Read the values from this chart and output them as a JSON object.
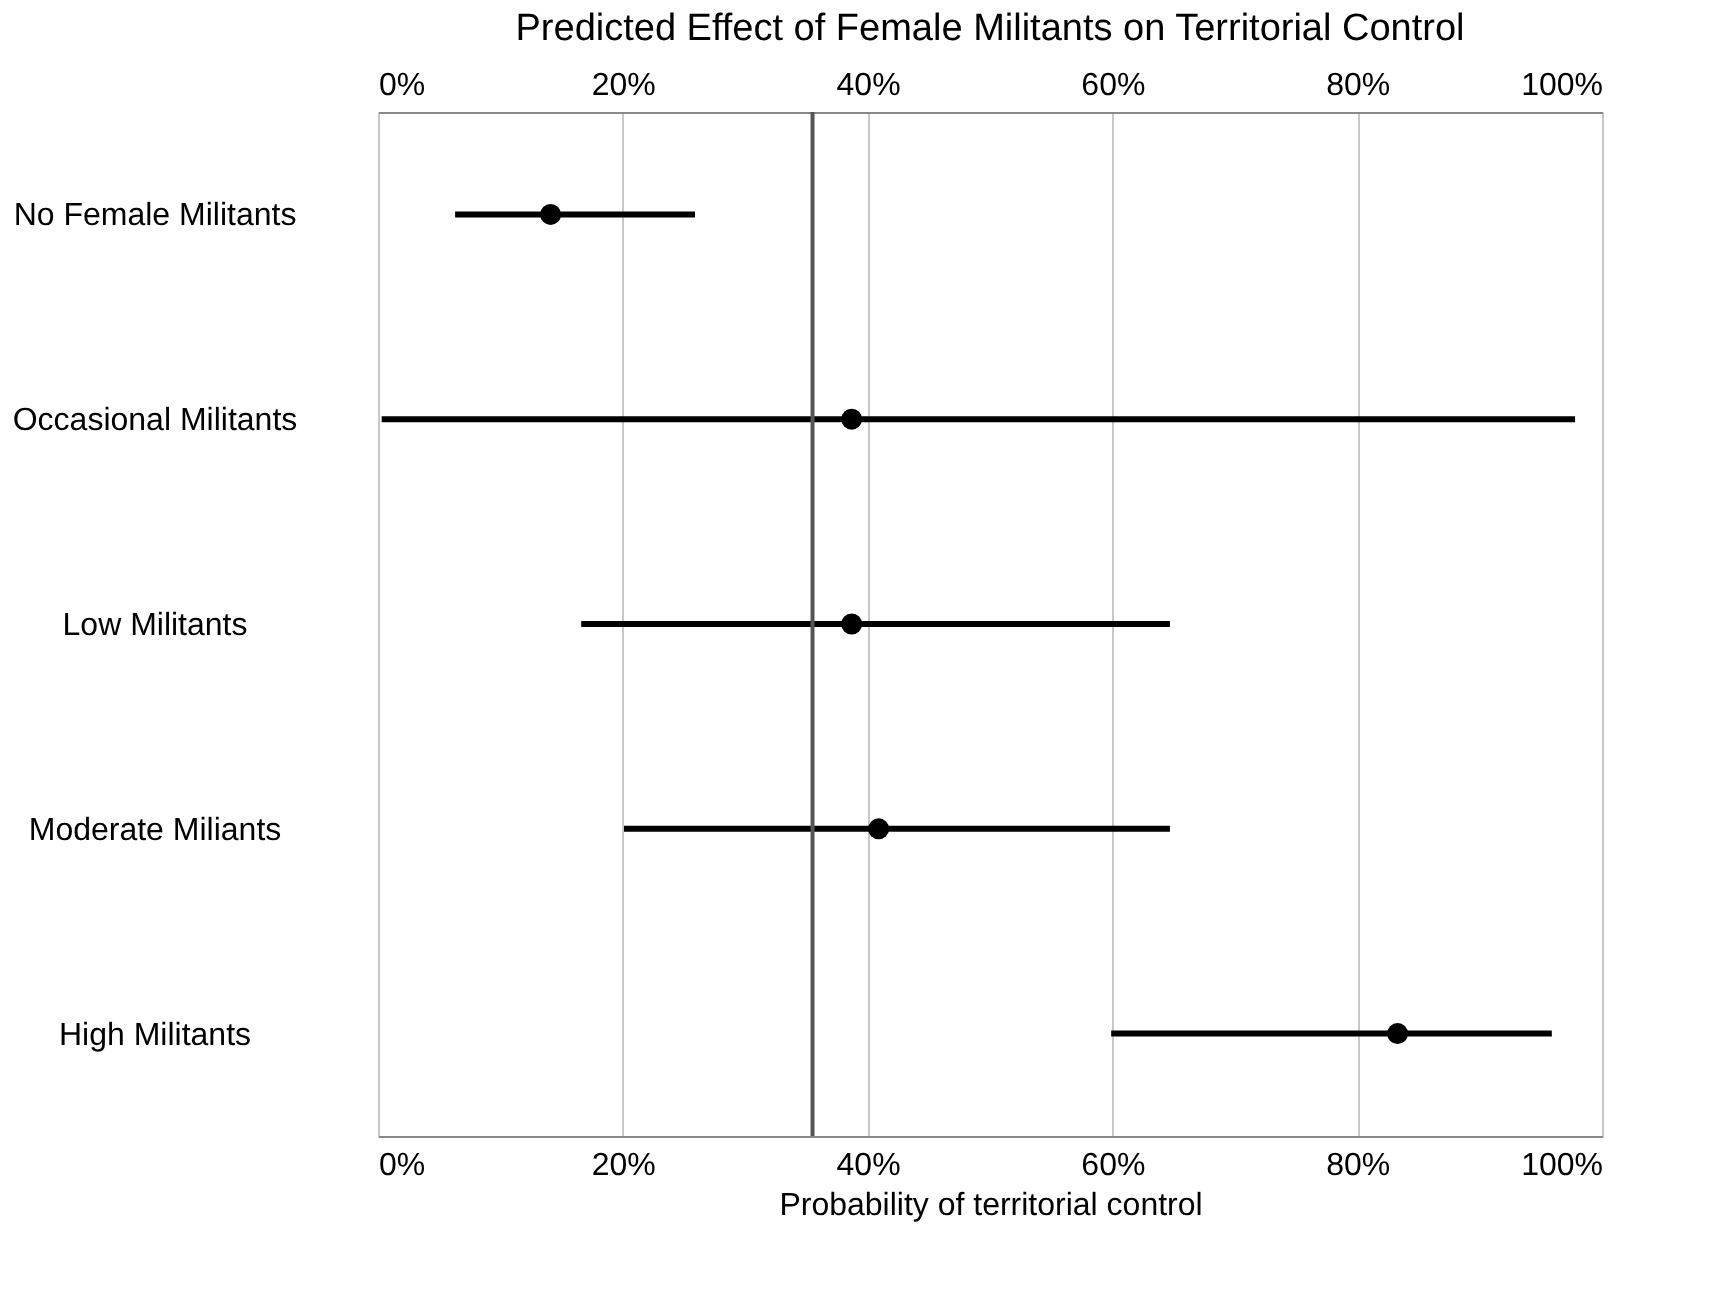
{
  "chart_data": {
    "type": "scatter",
    "orientation": "horizontal",
    "title": "Predicted Effect of Female Militants on Territorial Control",
    "xlabel": "Probability of territorial control",
    "categories": [
      "No Female Militants",
      "Occasional Militants",
      "Low Militants",
      "Moderate Miliants",
      "High Militants"
    ],
    "series": [
      {
        "color": "#000000",
        "values": [
          14.1,
          38.7,
          38.7,
          40.9,
          83.3
        ],
        "errors": [
          [
            6.3,
            25.9
          ],
          [
            0.3,
            97.8
          ],
          [
            16.6,
            64.7
          ],
          [
            20.1,
            64.7
          ],
          [
            59.9,
            95.9
          ]
        ]
      }
    ],
    "xlim": [
      0,
      100
    ],
    "xticks": [
      {
        "value": 0,
        "label": "0%"
      },
      {
        "value": 20,
        "label": "20%"
      },
      {
        "value": 40,
        "label": "40%"
      },
      {
        "value": 60,
        "label": "60%"
      },
      {
        "value": 80,
        "label": "80%"
      },
      {
        "value": 100,
        "label": "100%"
      }
    ],
    "x2lim": [
      0,
      100
    ],
    "x2ticks": [
      {
        "value": 0,
        "label": "0%"
      },
      {
        "value": 20,
        "label": "20%"
      },
      {
        "value": 40,
        "label": "40%"
      },
      {
        "value": 60,
        "label": "60%"
      },
      {
        "value": 80,
        "label": "80%"
      },
      {
        "value": 100,
        "label": "100%"
      }
    ],
    "ref_lines": [
      {
        "axis": "x",
        "value": 35.5,
        "color": "#555555"
      }
    ],
    "grid": "x",
    "marker": "circle"
  }
}
